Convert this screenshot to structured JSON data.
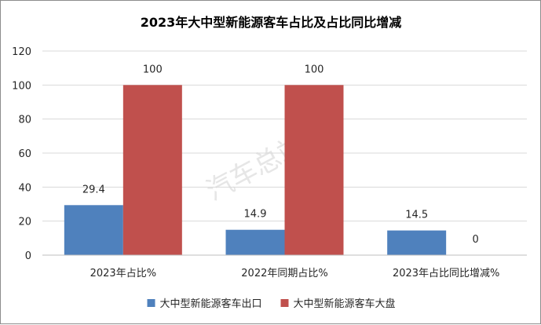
{
  "chart_data": {
    "type": "bar",
    "title": "2023年大中型新能源客车占比及占比同比增减",
    "categories": [
      "2023年占比%",
      "2022年同期占比%",
      "2023年占比同比增减%"
    ],
    "series": [
      {
        "name": "大中型新能源客车出口",
        "color": "#4f81bd",
        "values": [
          29.4,
          14.9,
          14.5
        ],
        "labels": [
          "29.4",
          "14.9",
          "14.5"
        ]
      },
      {
        "name": "大中型新能源客车大盘",
        "color": "#c0504d",
        "values": [
          100,
          100,
          0
        ],
        "labels": [
          "100",
          "100",
          "0"
        ]
      }
    ],
    "ylim": [
      0,
      120
    ],
    "yticks": [
      0,
      20,
      40,
      60,
      80,
      100,
      120
    ],
    "grid": true,
    "legend": "bottom",
    "watermark": "汽车总站网"
  }
}
